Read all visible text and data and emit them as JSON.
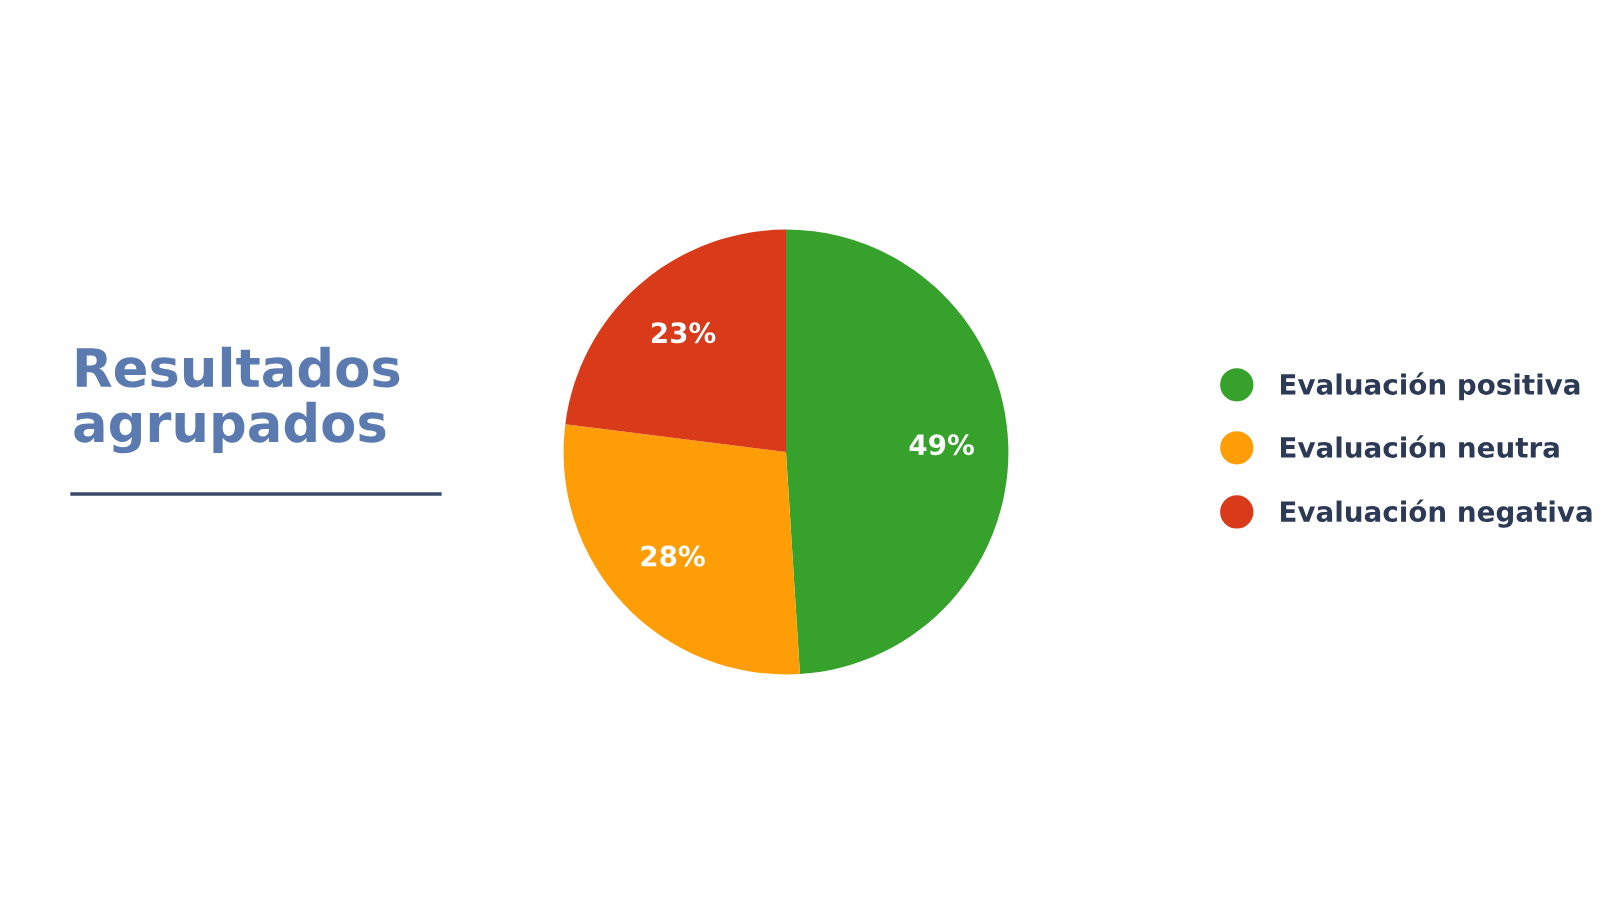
{
  "chart_data": {
    "type": "pie",
    "title": "Resultados agrupados",
    "categories": [
      "Evaluación positiva",
      "Evaluación neutra",
      "Evaluación negativa"
    ],
    "values": [
      49,
      28,
      23
    ],
    "colors": [
      "#36a12b",
      "#ff9d07",
      "#d93b1a"
    ],
    "value_labels": [
      "49%",
      "28%",
      "23%"
    ],
    "legend": "right"
  }
}
